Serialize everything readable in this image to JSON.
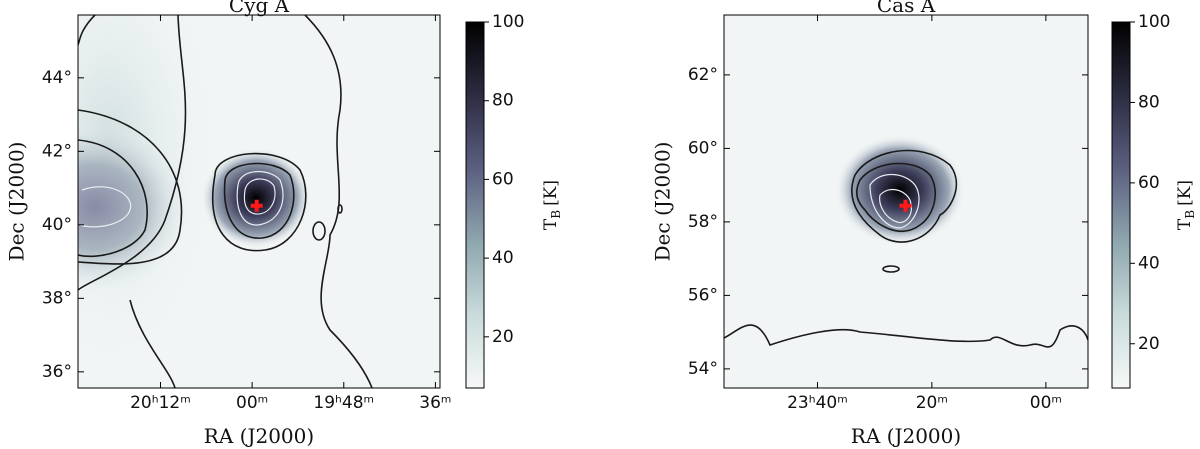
{
  "chart_data": [
    {
      "type": "contour-map",
      "title": "Cyg A",
      "xlabel": "RA (J2000)",
      "ylabel": "Dec (J2000)",
      "xlim": [
        20.38,
        19.59
      ],
      "ylim": [
        35.56,
        45.71
      ],
      "xticks": [
        {
          "value": 20.2,
          "label": "20ʰ12ᵐ"
        },
        {
          "value": 20.0,
          "label": "00ᵐ"
        },
        {
          "value": 19.8,
          "label": "19ʰ48ᵐ"
        },
        {
          "value": 19.6,
          "label": "36ᵐ"
        }
      ],
      "yticks": [
        {
          "value": 36,
          "label": "36°"
        },
        {
          "value": 38,
          "label": "38°"
        },
        {
          "value": 40,
          "label": "40°"
        },
        {
          "value": 42,
          "label": "42°"
        },
        {
          "value": 44,
          "label": "44°"
        }
      ],
      "source": {
        "ra": 19.99,
        "dec": 40.52,
        "color": "#ff1a1a"
      },
      "colorbar": {
        "lim": [
          7,
          100
        ],
        "ticks": [
          20,
          40,
          60,
          80,
          100
        ],
        "label": {
          "symbol": "T",
          "subscript": "B",
          "unit": "[K]"
        }
      }
    },
    {
      "type": "contour-map",
      "title": "Cas A",
      "xlabel": "RA (J2000)",
      "ylabel": "Dec (J2000)",
      "xlim": [
        23.94,
        22.877
      ],
      "ylim": [
        53.48,
        63.63
      ],
      "xticks": [
        {
          "value": 23.667,
          "label": "23ʰ40ᵐ"
        },
        {
          "value": 23.333,
          "label": "20ᵐ"
        },
        {
          "value": 23.0,
          "label": "00ᵐ"
        }
      ],
      "yticks": [
        {
          "value": 54,
          "label": "54°"
        },
        {
          "value": 56,
          "label": "56°"
        },
        {
          "value": 58,
          "label": "58°"
        },
        {
          "value": 60,
          "label": "60°"
        },
        {
          "value": 62,
          "label": "62°"
        }
      ],
      "source": {
        "ra": 23.41,
        "dec": 58.44,
        "color": "#ff1a1a"
      },
      "colorbar": {
        "lim": [
          9,
          100
        ],
        "ticks": [
          20,
          40,
          60,
          80,
          100
        ],
        "label": {
          "symbol": "T",
          "subscript": "B",
          "unit": "[K]"
        }
      }
    }
  ]
}
